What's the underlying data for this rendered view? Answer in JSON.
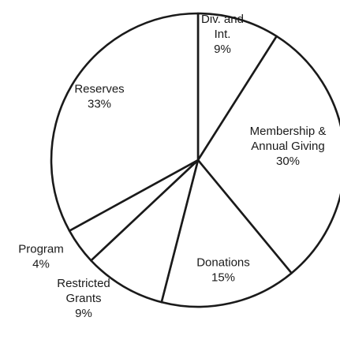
{
  "chart_data": {
    "type": "pie",
    "start_angle_deg": 0,
    "direction": "clockwise",
    "legend": "none",
    "line_color": "#1a1a1a",
    "fill_color": "#ffffff",
    "slices": [
      {
        "label_lines": [
          "Div. and",
          "Int."
        ],
        "value": 9,
        "value_text": "9%"
      },
      {
        "label_lines": [
          "Membership &",
          "Annual Giving"
        ],
        "value": 30,
        "value_text": "30%"
      },
      {
        "label_lines": [
          "Donations"
        ],
        "value": 15,
        "value_text": "15%"
      },
      {
        "label_lines": [
          "Restricted",
          "Grants"
        ],
        "value": 9,
        "value_text": "9%"
      },
      {
        "label_lines": [
          "Program"
        ],
        "value": 4,
        "value_text": "4%"
      },
      {
        "label_lines": [
          "Reserves"
        ],
        "value": 33,
        "value_text": "33%"
      }
    ]
  }
}
